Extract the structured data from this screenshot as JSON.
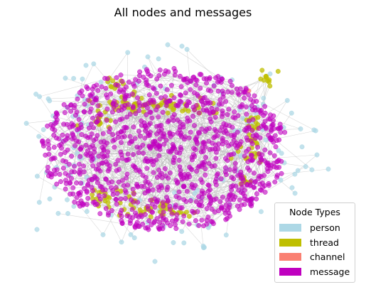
{
  "title": "All nodes and messages",
  "legend": {
    "title": "Node Types",
    "items": [
      {
        "label": "person",
        "color": "#add8e6"
      },
      {
        "label": "thread",
        "color": "#bfbf00"
      },
      {
        "label": "channel",
        "color": "#fa8072"
      },
      {
        "label": "message",
        "color": "#bf00bf"
      }
    ]
  },
  "graph": {
    "edge_color": "#b8b8b8",
    "node_colors": {
      "person": "#add8e6",
      "thread": "#bfbf00",
      "channel": "#fa8072",
      "message": "#bf00bf"
    }
  }
}
